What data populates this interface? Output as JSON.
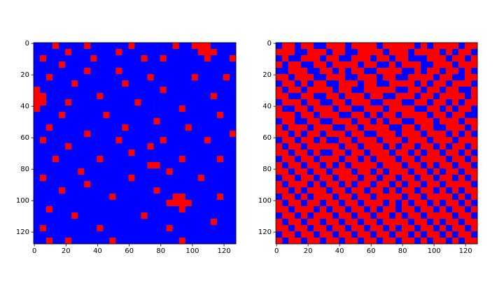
{
  "chart_data": [
    {
      "type": "heatmap",
      "xlim": [
        -0.5,
        127.5
      ],
      "ylim": [
        127.5,
        -0.5
      ],
      "xticks": [
        0,
        20,
        40,
        60,
        80,
        100,
        120
      ],
      "yticks": [
        0,
        20,
        40,
        60,
        80,
        100,
        120
      ],
      "cmap": [
        "#0000ff",
        "#ff0000"
      ],
      "z": [
        "00010000100000010000001001110000",
        "00000100000001000000000000111000",
        "01000000010000000100100000010001",
        "00001000000000000000000000000000",
        "00000000100001000000000000000000",
        "00100000000000000010000001000010",
        "00000010000000100000000000000000",
        "10000000000000000000100000000000",
        "11000000001000000000000000001000",
        "11000100000000001000000000000000",
        "10000000000000000000000100000000",
        "00001000000100000000000000000100",
        "00000000000000000001000000000000",
        "00100000000000100000000010000000",
        "00000000100000000000000000000001",
        "01000000000001000000100000010000",
        "00000100000000000010000000000000",
        "00000000000000010000000000000000",
        "00010000001000000000000100000100",
        "00000000000000000011000000000000",
        "00000001000000000000010000000000",
        "01000000000000010000000000100000",
        "00000000100000000000000000000000",
        "00001000000000000001000000000000",
        "00000000000010000000001100000100",
        "00000000000000000000011110000000",
        "00100000000000000000000100000000",
        "00000010000000000100000000000000",
        "00000000000000000000000000001000",
        "01000000001000000000010000000000",
        "00000000000000000000000000000000",
        "00100100000010000000000100000000"
      ]
    },
    {
      "type": "heatmap",
      "xlim": [
        -0.5,
        127.5
      ],
      "ylim": [
        127.5,
        -0.5
      ],
      "xticks": [
        0,
        20,
        40,
        60,
        80,
        100,
        120
      ],
      "yticks": [
        0,
        20,
        40,
        60,
        80,
        100,
        120
      ],
      "cmap": [
        "#0000ff",
        "#ff0000"
      ],
      "z": [
        "01101100111011110111110101111011",
        "11100111011001111011101111010110",
        "01001110110011101101100011101101",
        "10110011011110110010111001110111",
        "00111001101011001111001011011010",
        "11011100111001110110011110110011",
        "01101011001110110011110101101110",
        "10110111101100111110011011011001",
        "11001100110111011001110110111101",
        "01110110011011100111001101101011",
        "10011011101100111011110011010110",
        "11101101110011010110111101101100",
        "01100110011101101011001110111011",
        "10111011100110111100110110011101",
        "11010110111011001110111011101010",
        "01101101001101110111011101110111",
        "10110111110110111010110110101101",
        "11011010011011011101101011011010",
        "01101101110110101110110111101101",
        "10110110101011110111011010110110",
        "11011011011101101011101101011011",
        "01101101101110110110110110110101",
        "10111010110101101101011011011110",
        "11010111011011011010110110101011",
        "01101011101101101111011011110101",
        "10110110110110111010101101011010",
        "11011101011011010110110110101101",
        "01101011101101101101011011110110",
        "10110110110110110111101101011011",
        "11011011011011011010110110101101",
        "01101101101101101101101011010110",
        "10110110110110110110110101101011"
      ]
    }
  ]
}
